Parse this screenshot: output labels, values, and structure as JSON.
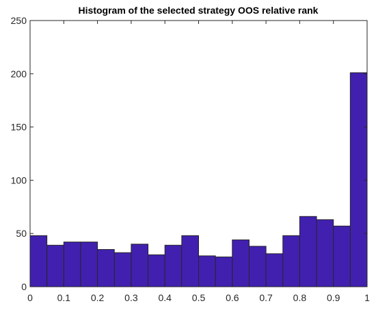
{
  "chart_data": {
    "type": "bar",
    "title": "Histogram of the selected strategy OOS relative rank",
    "xlabel": "",
    "ylabel": "",
    "xlim": [
      0,
      1
    ],
    "ylim": [
      0,
      250
    ],
    "bin_width": 0.05,
    "bin_edges": [
      0,
      0.05,
      0.1,
      0.15,
      0.2,
      0.25,
      0.3,
      0.35,
      0.4,
      0.45,
      0.5,
      0.55,
      0.6,
      0.65,
      0.7,
      0.75,
      0.8,
      0.85,
      0.9,
      0.95,
      1.0
    ],
    "values": [
      48,
      39,
      42,
      42,
      35,
      32,
      40,
      30,
      39,
      48,
      29,
      28,
      44,
      38,
      31,
      48,
      66,
      63,
      57,
      201
    ],
    "x_ticks": [
      0,
      0.1,
      0.2,
      0.3,
      0.4,
      0.5,
      0.6,
      0.7,
      0.8,
      0.9,
      1
    ],
    "x_tick_labels": [
      "0",
      "0.1",
      "0.2",
      "0.3",
      "0.4",
      "0.5",
      "0.6",
      "0.7",
      "0.8",
      "0.9",
      "1"
    ],
    "y_ticks": [
      0,
      50,
      100,
      150,
      200,
      250
    ],
    "y_tick_labels": [
      "0",
      "50",
      "100",
      "150",
      "200",
      "250"
    ],
    "bar_color": "#4120b0",
    "bar_edge_color": "#262626",
    "grid": false,
    "legend": "none"
  }
}
